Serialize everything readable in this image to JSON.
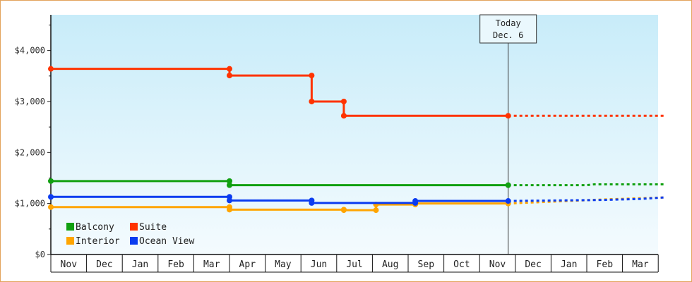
{
  "chart_data": {
    "type": "line",
    "step": true,
    "y_ticks": [
      "$0",
      "$1,000",
      "$2,000",
      "$3,000",
      "$4,000"
    ],
    "ylim": [
      0,
      4700
    ],
    "months": [
      "Nov",
      "Dec",
      "Jan",
      "Feb",
      "Mar",
      "Apr",
      "May",
      "Jun",
      "Jul",
      "Aug",
      "Sep",
      "Oct",
      "Nov",
      "Dec",
      "Jan",
      "Feb",
      "Mar"
    ],
    "x_units": "month index from first Nov",
    "today": {
      "line1": "Today",
      "line2": "Dec. 6",
      "x": 12.8
    },
    "grid": false,
    "legend_position": "bottom-left",
    "series": [
      {
        "name": "Balcony",
        "color": "#11a011",
        "points": [
          [
            0,
            1440
          ],
          [
            5,
            1440
          ],
          [
            5,
            1360
          ],
          [
            12.8,
            1360
          ]
        ],
        "projection": [
          [
            12.8,
            1360
          ],
          [
            15,
            1360
          ],
          [
            15.2,
            1375
          ],
          [
            17.2,
            1375
          ]
        ]
      },
      {
        "name": "Suite",
        "color": "#ff3300",
        "points": [
          [
            0,
            3640
          ],
          [
            5,
            3640
          ],
          [
            5,
            3510
          ],
          [
            7.3,
            3510
          ],
          [
            7.3,
            3000
          ],
          [
            8.2,
            3000
          ],
          [
            8.2,
            2720
          ],
          [
            12.8,
            2720
          ]
        ],
        "projection": [
          [
            12.8,
            2720
          ],
          [
            17.2,
            2720
          ]
        ]
      },
      {
        "name": "Interior",
        "color": "#ffa500",
        "points": [
          [
            0,
            930
          ],
          [
            5,
            930
          ],
          [
            5,
            880
          ],
          [
            8.2,
            880
          ],
          [
            8.2,
            870
          ],
          [
            9.1,
            870
          ],
          [
            9.1,
            980
          ],
          [
            10.2,
            980
          ],
          [
            10.2,
            1000
          ],
          [
            12.8,
            1000
          ]
        ],
        "projection": [
          [
            12.8,
            1000
          ],
          [
            15.5,
            1080
          ],
          [
            17.2,
            1120
          ]
        ]
      },
      {
        "name": "Ocean View",
        "color": "#0b3cf0",
        "points": [
          [
            0,
            1130
          ],
          [
            5,
            1130
          ],
          [
            5,
            1060
          ],
          [
            7.3,
            1060
          ],
          [
            7.3,
            1010
          ],
          [
            10.2,
            1010
          ],
          [
            10.2,
            1050
          ],
          [
            12.8,
            1050
          ]
        ],
        "projection": [
          [
            12.8,
            1050
          ],
          [
            15.5,
            1070
          ],
          [
            16.5,
            1090
          ],
          [
            17.2,
            1120
          ]
        ]
      }
    ]
  }
}
